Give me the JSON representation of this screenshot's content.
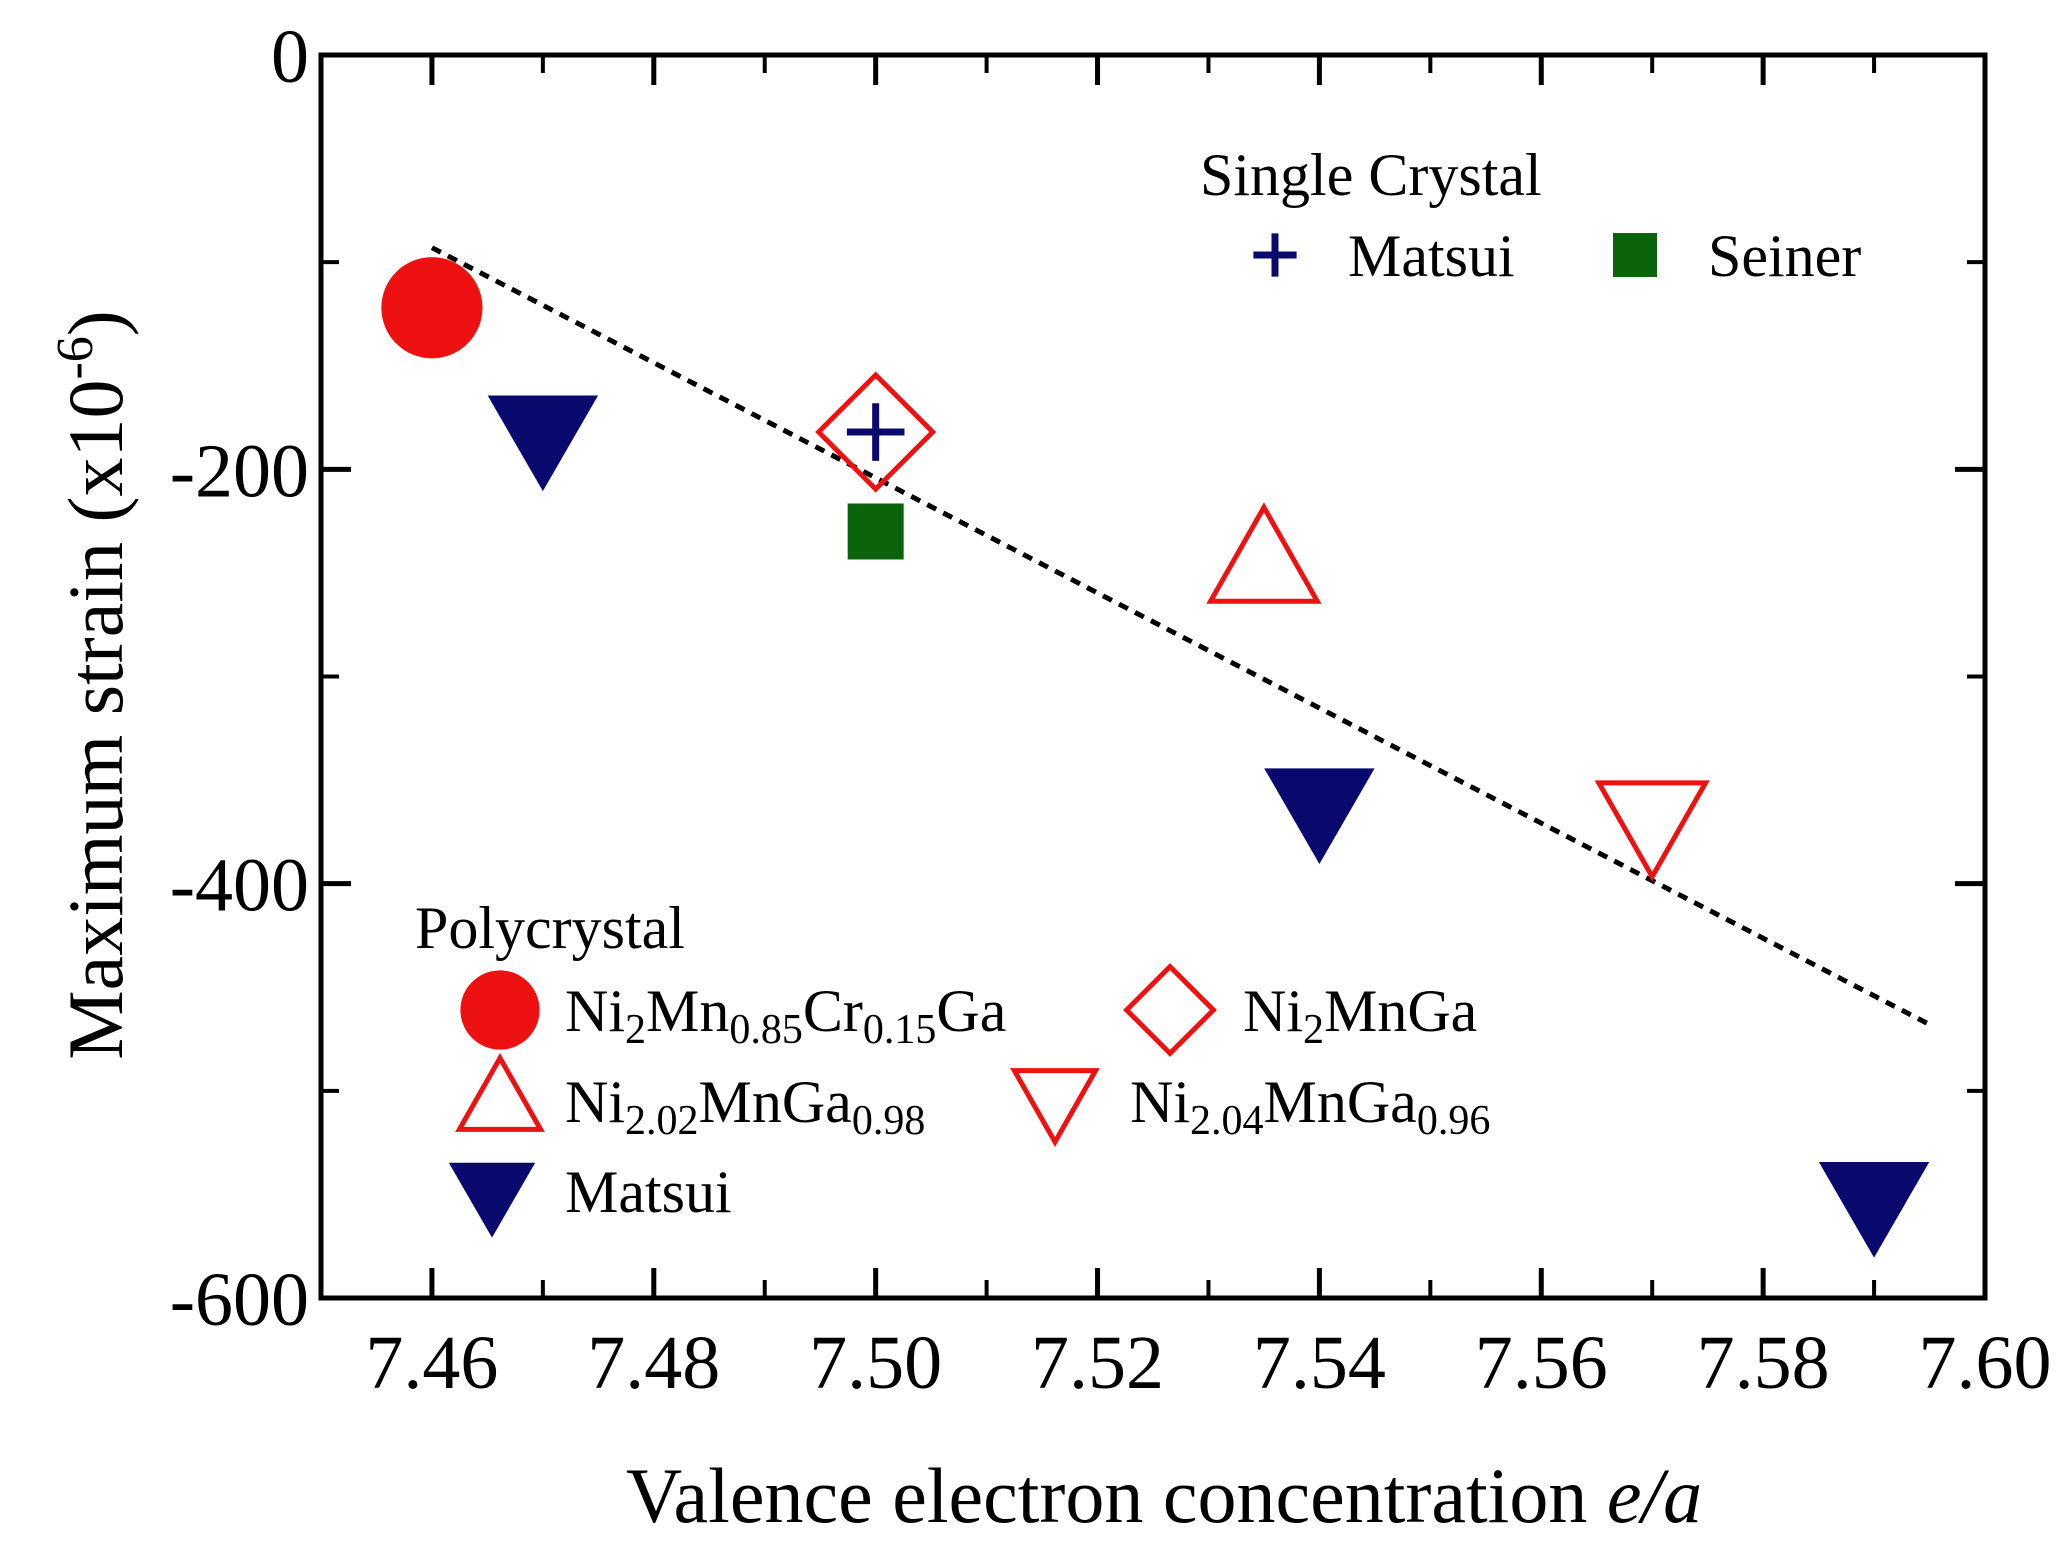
{
  "chart_data": {
    "type": "scatter",
    "xlabel_prefix": "Valence electron concentration ",
    "xlabel_italic": "e/a",
    "ylabel_main": "Maximum strain (x10",
    "ylabel_sup": "-6",
    "ylabel_close": ")",
    "xlim": [
      7.45,
      7.6
    ],
    "ylim": [
      -600,
      0
    ],
    "x_ticks": [
      7.46,
      7.48,
      7.5,
      7.52,
      7.54,
      7.56,
      7.58,
      7.6
    ],
    "x_tick_labels": [
      "7.46",
      "7.48",
      "7.50",
      "7.52",
      "7.54",
      "7.56",
      "7.58",
      "7.60"
    ],
    "y_ticks": [
      0,
      -200,
      -400,
      -600
    ],
    "y_tick_labels": [
      "0",
      "-200",
      "-400",
      "-600"
    ],
    "y_minor_ticks": [
      -100,
      -300,
      -500
    ],
    "x_minor_ticks": [
      7.47,
      7.49,
      7.51,
      7.53,
      7.55,
      7.57,
      7.59
    ],
    "fit_line": {
      "style": "dotted",
      "x": [
        7.46,
        7.595
      ],
      "y": [
        -93,
        -468
      ]
    },
    "series": [
      {
        "id": "s1",
        "name": "Ni2Mn0.85Cr0.15Ga",
        "group": "Polycrystal",
        "marker": "circle-filled",
        "color": "#ee1111",
        "points": [
          [
            7.46,
            -122
          ]
        ]
      },
      {
        "id": "s2",
        "name": "Ni2MnGa",
        "group": "Polycrystal",
        "marker": "diamond-open",
        "color": "#ee1111",
        "points": [
          [
            7.5,
            -182
          ]
        ]
      },
      {
        "id": "s3",
        "name": "Ni2.02MnGa0.98",
        "group": "Polycrystal",
        "marker": "triangle-up-open",
        "color": "#ee1111",
        "points": [
          [
            7.535,
            -245
          ]
        ]
      },
      {
        "id": "s4",
        "name": "Ni2.04MnGa0.96",
        "group": "Polycrystal",
        "marker": "triangle-down-open",
        "color": "#ee1111",
        "points": [
          [
            7.57,
            -370
          ]
        ]
      },
      {
        "id": "s5",
        "name": "Matsui",
        "group": "Polycrystal",
        "marker": "triangle-down-filled",
        "color": "#0a0a6e",
        "points": [
          [
            7.47,
            -183
          ],
          [
            7.54,
            -363
          ],
          [
            7.59,
            -553
          ]
        ]
      },
      {
        "id": "s6",
        "name": "Matsui",
        "group": "Single Crystal",
        "marker": "plus",
        "color": "#0a0a6e",
        "points": [
          [
            7.5,
            -182
          ]
        ]
      },
      {
        "id": "s7",
        "name": "Seiner",
        "group": "Single Crystal",
        "marker": "square-filled",
        "color": "#0b640b",
        "points": [
          [
            7.5,
            -230
          ]
        ]
      }
    ],
    "legend": {
      "single_crystal_heading": "Single Crystal",
      "polycrystal_heading": "Polycrystal",
      "entries": {
        "sc_matsui": "Matsui",
        "sc_seiner": "Seiner",
        "pc_cr": {
          "a": "Ni",
          "b": "2",
          "c": "Mn",
          "d": "0.85",
          "e": "Cr",
          "f": "0.15",
          "g": "Ga"
        },
        "pc_ni2mnga": {
          "a": "Ni",
          "b": "2",
          "c": "MnGa"
        },
        "pc_202": {
          "a": "Ni",
          "b": "2.02",
          "c": "MnGa",
          "d": "0.98"
        },
        "pc_204": {
          "a": "Ni",
          "b": "2.04",
          "c": "MnGa",
          "d": "0.96"
        },
        "pc_matsui": "Matsui"
      }
    }
  }
}
